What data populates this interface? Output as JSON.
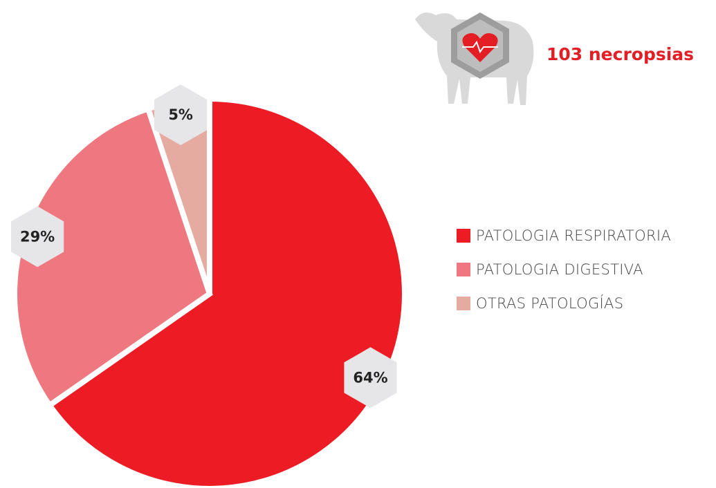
{
  "chart_data": {
    "type": "pie",
    "title": "103 necropsias",
    "categories": [
      "PATOLOGIA RESPIRATORIA",
      "PATOLOGIA DIGESTIVA",
      "OTRAS PATOLOGÍAS"
    ],
    "values": [
      64,
      29,
      5
    ],
    "value_labels": [
      "64%",
      "29%",
      "5%"
    ],
    "colors": [
      "#ed1c24",
      "#ef7880",
      "#e6aba0"
    ]
  }
}
